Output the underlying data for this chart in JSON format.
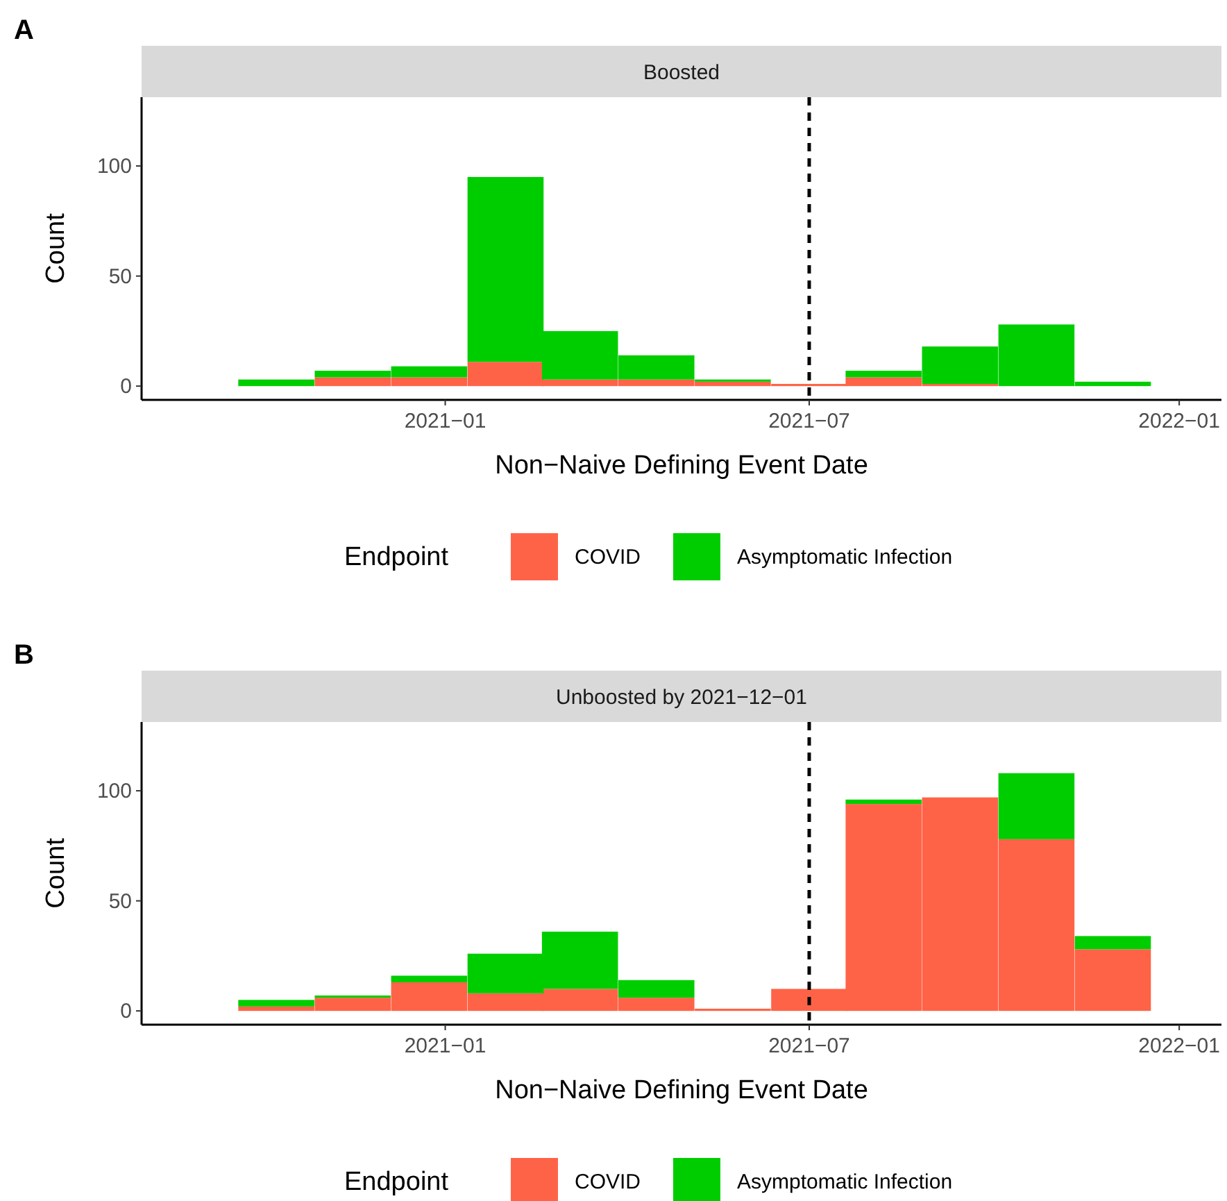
{
  "chart_data": [
    {
      "type": "bar",
      "title": "A",
      "subtitle": "Boosted",
      "xlabel": "Non−Naive Defining Event Date",
      "ylabel": "Count",
      "legend_title": "Endpoint",
      "legend": "bottom",
      "stacked": true,
      "grid": false,
      "x": [
        "2020-10-09",
        "2020-11-16",
        "2020-12-24",
        "2021-01-31",
        "2021-03-09",
        "2021-04-16",
        "2021-05-24",
        "2021-07-01",
        "2021-08-07",
        "2021-09-14",
        "2021-10-22",
        "2021-11-29"
      ],
      "series": [
        {
          "name": "COVID",
          "color": "#ff6347",
          "values": [
            0,
            4,
            4,
            11,
            3,
            3,
            2,
            1,
            4,
            1,
            0,
            0
          ]
        },
        {
          "name": "Asymptomatic Infection",
          "color": "#00cd00",
          "values": [
            3,
            3,
            5,
            84,
            22,
            11,
            1,
            0,
            3,
            17,
            28,
            2
          ]
        }
      ],
      "xlim": [
        "2020-08-03",
        "2022-01-22"
      ],
      "xticks": [
        {
          "value": "2021-01-01",
          "label": "2021−01"
        },
        {
          "value": "2021-07-01",
          "label": "2021−07"
        },
        {
          "value": "2022-01-01",
          "label": "2022−01"
        }
      ],
      "ylim": [
        -6.25,
        131.25
      ],
      "yticks": [
        0,
        50,
        100
      ],
      "ref_lines": [
        {
          "axis": "x",
          "value": "2021-07-01",
          "line_style": "dashed",
          "color": "#000000"
        }
      ]
    },
    {
      "type": "bar",
      "title": "B",
      "subtitle": "Unboosted by 2021−12−01",
      "xlabel": "Non−Naive Defining Event Date",
      "ylabel": "Count",
      "legend_title": "Endpoint",
      "legend": "bottom",
      "stacked": true,
      "grid": false,
      "x": [
        "2020-10-09",
        "2020-11-16",
        "2020-12-24",
        "2021-01-31",
        "2021-03-09",
        "2021-04-16",
        "2021-05-24",
        "2021-07-01",
        "2021-08-07",
        "2021-09-14",
        "2021-10-22",
        "2021-11-29"
      ],
      "series": [
        {
          "name": "COVID",
          "color": "#ff6347",
          "values": [
            2,
            6,
            13,
            8,
            10,
            6,
            1,
            10,
            94,
            97,
            78,
            28
          ]
        },
        {
          "name": "Asymptomatic Infection",
          "color": "#00cd00",
          "values": [
            3,
            1,
            3,
            18,
            26,
            8,
            0,
            0,
            2,
            0,
            30,
            6
          ]
        }
      ],
      "xlim": [
        "2020-08-03",
        "2022-01-22"
      ],
      "xticks": [
        {
          "value": "2021-01-01",
          "label": "2021−01"
        },
        {
          "value": "2021-07-01",
          "label": "2021−07"
        },
        {
          "value": "2022-01-01",
          "label": "2022−01"
        }
      ],
      "ylim": [
        -6.25,
        131.25
      ],
      "yticks": [
        0,
        50,
        100
      ],
      "ref_lines": [
        {
          "axis": "x",
          "value": "2021-07-01",
          "line_style": "dashed",
          "color": "#000000"
        }
      ]
    }
  ]
}
